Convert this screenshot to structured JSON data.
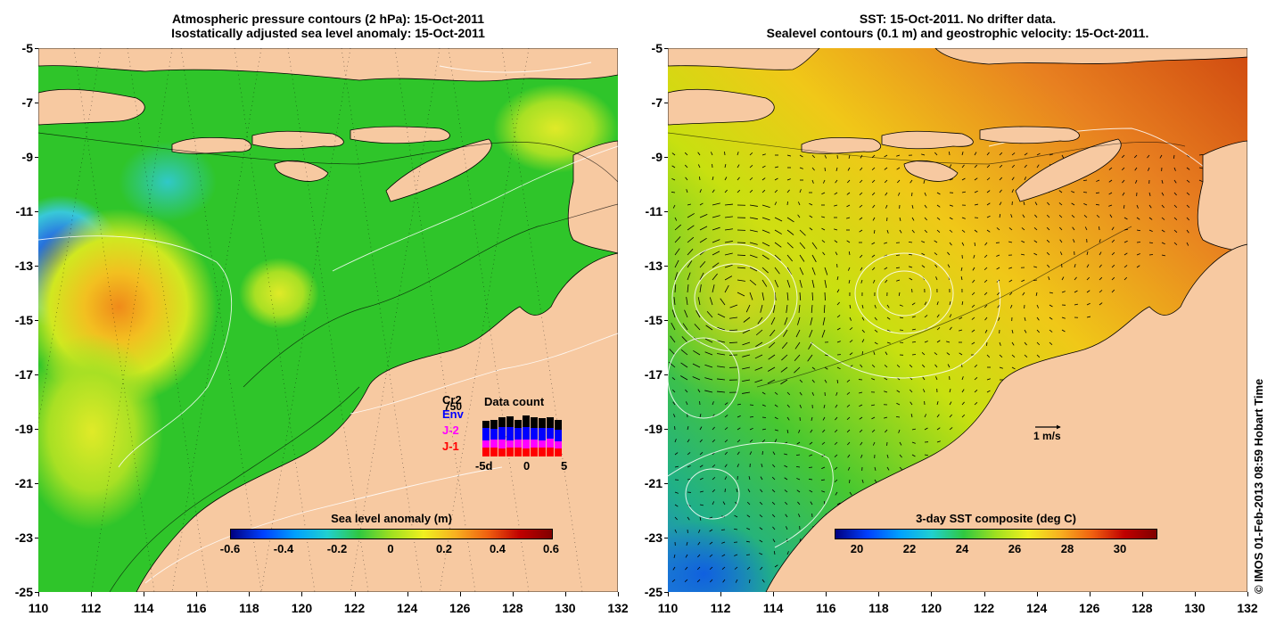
{
  "left_panel": {
    "title_line1": "Atmospheric pressure contours (2 hPa): 15-Oct-2011",
    "title_line2": "Isostatically adjusted sea level anomaly: 15-Oct-2011",
    "colorbar": {
      "label": "Sea level anomaly (m)",
      "ticks": [
        "-0.6",
        "-0.4",
        "-0.2",
        "0",
        "0.2",
        "0.4",
        "0.6"
      ],
      "range": [
        -0.6,
        0.6
      ]
    },
    "data_count": {
      "title": "Data count",
      "max_label": "750",
      "satellites": [
        {
          "name": "Cr2",
          "color": "#000000"
        },
        {
          "name": "Env",
          "color": "#0000ff"
        },
        {
          "name": "J-2",
          "color": "#ff00ff"
        },
        {
          "name": "J-1",
          "color": "#ff0000"
        }
      ],
      "axis_labels": [
        "-5d",
        "0",
        "5"
      ]
    }
  },
  "right_panel": {
    "title_line1": "SST: 15-Oct-2011. No drifter data.",
    "title_line2": "Sealevel contours (0.1 m) and geostrophic velocity: 15-Oct-2011.",
    "colorbar": {
      "label": "3-day SST composite (deg C)",
      "ticks": [
        "20",
        "22",
        "24",
        "26",
        "28",
        "30"
      ],
      "range": [
        19.2,
        31.4
      ]
    },
    "vector_scale_label": "1 m/s"
  },
  "axes": {
    "y_ticks": [
      "-5",
      "-7",
      "-9",
      "-11",
      "-13",
      "-15",
      "-17",
      "-19",
      "-21",
      "-23",
      "-25"
    ],
    "x_ticks": [
      "110",
      "112",
      "114",
      "116",
      "118",
      "120",
      "122",
      "124",
      "126",
      "128",
      "130",
      "132"
    ],
    "lon_range": [
      110,
      132
    ],
    "lat_range": [
      -25,
      -5
    ]
  },
  "credit": "© IMOS 01-Feb-2013 08:59 Hobart Time",
  "colors": {
    "land": "#f7c9a1",
    "sla_sea": "#2fc52a",
    "sst_sea": "#b8e000"
  }
}
